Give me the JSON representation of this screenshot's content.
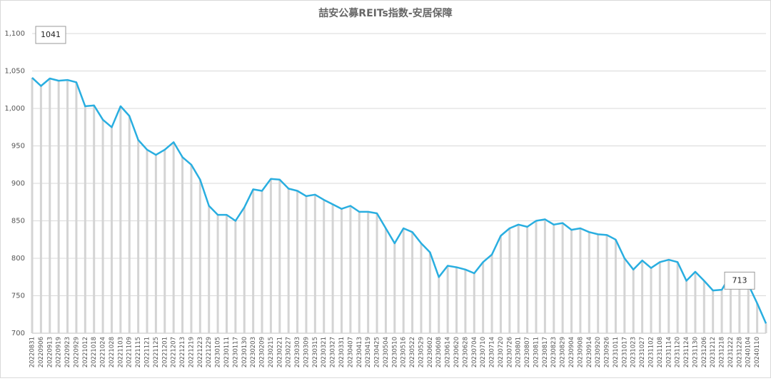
{
  "chart_data": {
    "type": "line",
    "title": "喆安公募REITs指数-安居保障",
    "categories": [
      "20220831",
      "20220906",
      "20220913",
      "20220919",
      "20220923",
      "20220929",
      "20221012",
      "20221018",
      "20221024",
      "20221028",
      "20221103",
      "20221109",
      "20221115",
      "20221121",
      "20221125",
      "20221201",
      "20221207",
      "20221213",
      "20221219",
      "20221223",
      "20221229",
      "20230105",
      "20230111",
      "20230117",
      "20230130",
      "20230203",
      "20230209",
      "20230215",
      "20230221",
      "20230227",
      "20230303",
      "20230309",
      "20230315",
      "20230321",
      "20230327",
      "20230331",
      "20230407",
      "20230413",
      "20230419",
      "20230425",
      "20230504",
      "20230510",
      "20230516",
      "20230522",
      "20230529",
      "20230602",
      "20230608",
      "20230614",
      "20230620",
      "20230628",
      "20230704",
      "20230710",
      "20230714",
      "20230720",
      "20230726",
      "20230801",
      "20230807",
      "20230811",
      "20230817",
      "20230823",
      "20230829",
      "20230904",
      "20230908",
      "20230914",
      "20230920",
      "20230926",
      "20231011",
      "20231017",
      "20231023",
      "20231027",
      "20231102",
      "20231108",
      "20231114",
      "20231120",
      "20231124",
      "20231130",
      "20231206",
      "20231212",
      "20231218",
      "20231222",
      "20231228",
      "20240104",
      "20240110",
      null
    ],
    "values": [
      1041,
      1030,
      1040,
      1037,
      1038,
      1035,
      1003,
      1004,
      985,
      975,
      1003,
      990,
      958,
      945,
      938,
      945,
      955,
      935,
      925,
      905,
      870,
      858,
      858,
      850,
      868,
      892,
      890,
      906,
      905,
      893,
      890,
      883,
      885,
      878,
      872,
      866,
      870,
      862,
      862,
      860,
      840,
      820,
      840,
      835,
      820,
      808,
      775,
      790,
      788,
      785,
      780,
      795,
      805,
      830,
      840,
      845,
      842,
      850,
      852,
      845,
      847,
      838,
      840,
      835,
      832,
      831,
      825,
      800,
      785,
      797,
      787,
      795,
      798,
      795,
      770,
      782,
      770,
      757,
      758,
      778,
      775,
      765,
      740,
      713
    ],
    "value_labels": [
      "1041",
      null,
      null,
      null,
      null,
      null,
      null,
      null,
      null,
      null,
      null,
      null,
      null,
      null,
      null,
      null,
      null,
      null,
      null,
      null,
      null,
      null,
      null,
      null,
      null,
      null,
      null,
      null,
      null,
      null,
      null,
      null,
      null,
      null,
      null,
      null,
      null,
      null,
      null,
      null,
      null,
      null,
      null,
      null,
      null,
      null,
      null,
      null,
      null,
      null,
      null,
      null,
      null,
      null,
      null,
      null,
      null,
      null,
      null,
      null,
      null,
      null,
      null,
      null,
      null,
      null,
      null,
      null,
      null,
      null,
      null,
      null,
      null,
      null,
      null,
      null,
      null,
      null,
      null,
      null,
      null,
      null,
      null,
      "713"
    ],
    "color": "#29aee0",
    "fill_color": "#d4d4d4",
    "ylim": [
      700,
      1100
    ],
    "yticks": [
      700,
      750,
      800,
      850,
      900,
      950,
      {
        "value": 1000,
        "label": "1,000"
      },
      {
        "value": 1050,
        "label": "1,050"
      },
      {
        "value": 1100,
        "label": "1,100"
      }
    ],
    "grid": true
  }
}
